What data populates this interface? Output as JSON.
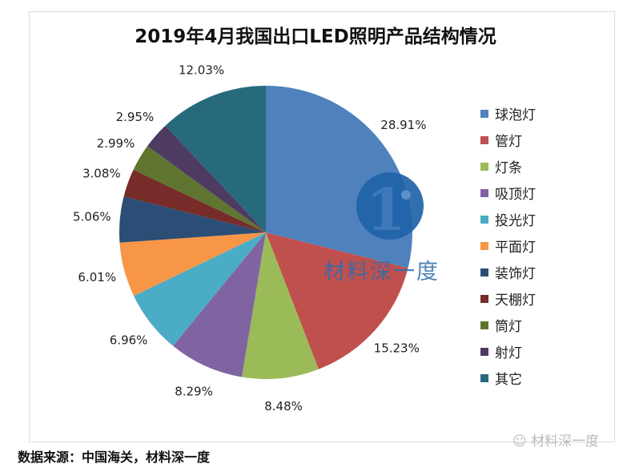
{
  "chart_data": {
    "type": "pie",
    "title": "2019年4月我国出口LED照明产品结构情况",
    "categories": [
      "球泡灯",
      "管灯",
      "灯条",
      "吸顶灯",
      "投光灯",
      "平面灯",
      "装饰灯",
      "天棚灯",
      "筒灯",
      "射灯",
      "其它"
    ],
    "values": [
      28.91,
      15.23,
      8.48,
      8.29,
      6.96,
      6.01,
      5.06,
      3.08,
      2.99,
      2.95,
      12.03
    ],
    "data_labels": [
      "28.91%",
      "15.23%",
      "8.48%",
      "8.29%",
      "6.96%",
      "6.01%",
      "5.06%",
      "3.08%",
      "2.99%",
      "2.95%",
      "12.03%"
    ],
    "colors": [
      "#4F81BD",
      "#C0504D",
      "#9BBB59",
      "#8064A2",
      "#4BACC6",
      "#F79646",
      "#2C4D75",
      "#772C2A",
      "#5F7530",
      "#4D3B62",
      "#276A7C"
    ],
    "legend_position": "right",
    "start_angle": "top, clockwise"
  },
  "watermark": {
    "text": "材料深一度",
    "logo_glyph": "1",
    "logo_color": "#1f63a8"
  },
  "source": "数据来源：中国海关，材料深一度",
  "wechat_watermark": "材料深一度"
}
